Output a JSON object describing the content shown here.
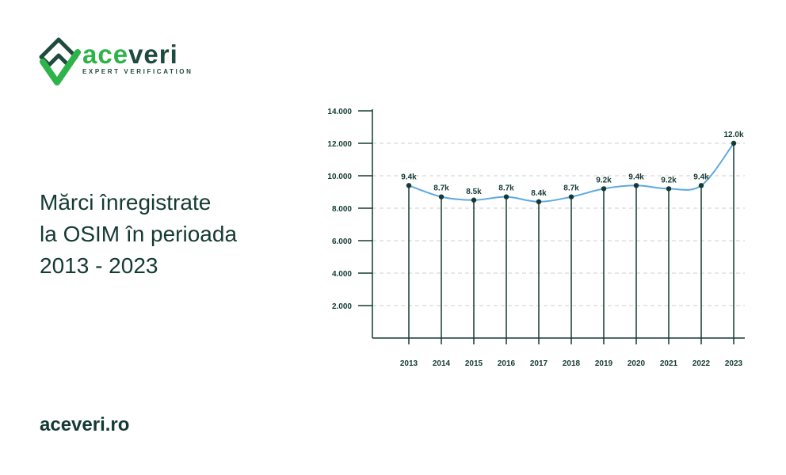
{
  "brand": {
    "name_accent": "ace",
    "name_rest": "veri",
    "tagline": "EXPERT VERIFICATION",
    "icon": "shield-check-logo-icon",
    "accent_color": "#2db34a",
    "dark_color": "#1f4a3f"
  },
  "headline": {
    "line1": "Mărci înregistrate",
    "line2": "la OSIM în perioada",
    "line3": "2013 - 2023"
  },
  "footer": {
    "site": "aceveri.ro"
  },
  "chart_data": {
    "type": "line",
    "title": "",
    "xlabel": "",
    "ylabel": "",
    "categories": [
      "2013",
      "2014",
      "2015",
      "2016",
      "2017",
      "2018",
      "2019",
      "2020",
      "2021",
      "2022",
      "2023"
    ],
    "values": [
      9400,
      8700,
      8500,
      8700,
      8400,
      8700,
      9200,
      9400,
      9200,
      9400,
      12000
    ],
    "data_labels": [
      "9.4k",
      "8.7k",
      "8.5k",
      "8.7k",
      "8.4k",
      "8.7k",
      "9.2k",
      "9.4k",
      "9.2k",
      "9.4k",
      "12.0k"
    ],
    "y_ticks": [
      2000,
      4000,
      6000,
      8000,
      10000,
      12000,
      14000
    ],
    "y_tick_labels": [
      "2.000",
      "4.000",
      "6.000",
      "8.000",
      "10.000",
      "12.000",
      "14.000"
    ],
    "ylim": [
      0,
      14000
    ],
    "grid": "horizontal dashed",
    "line_color": "#5fa8e0",
    "stem_color": "#143a34",
    "point_color": "#143a34"
  }
}
